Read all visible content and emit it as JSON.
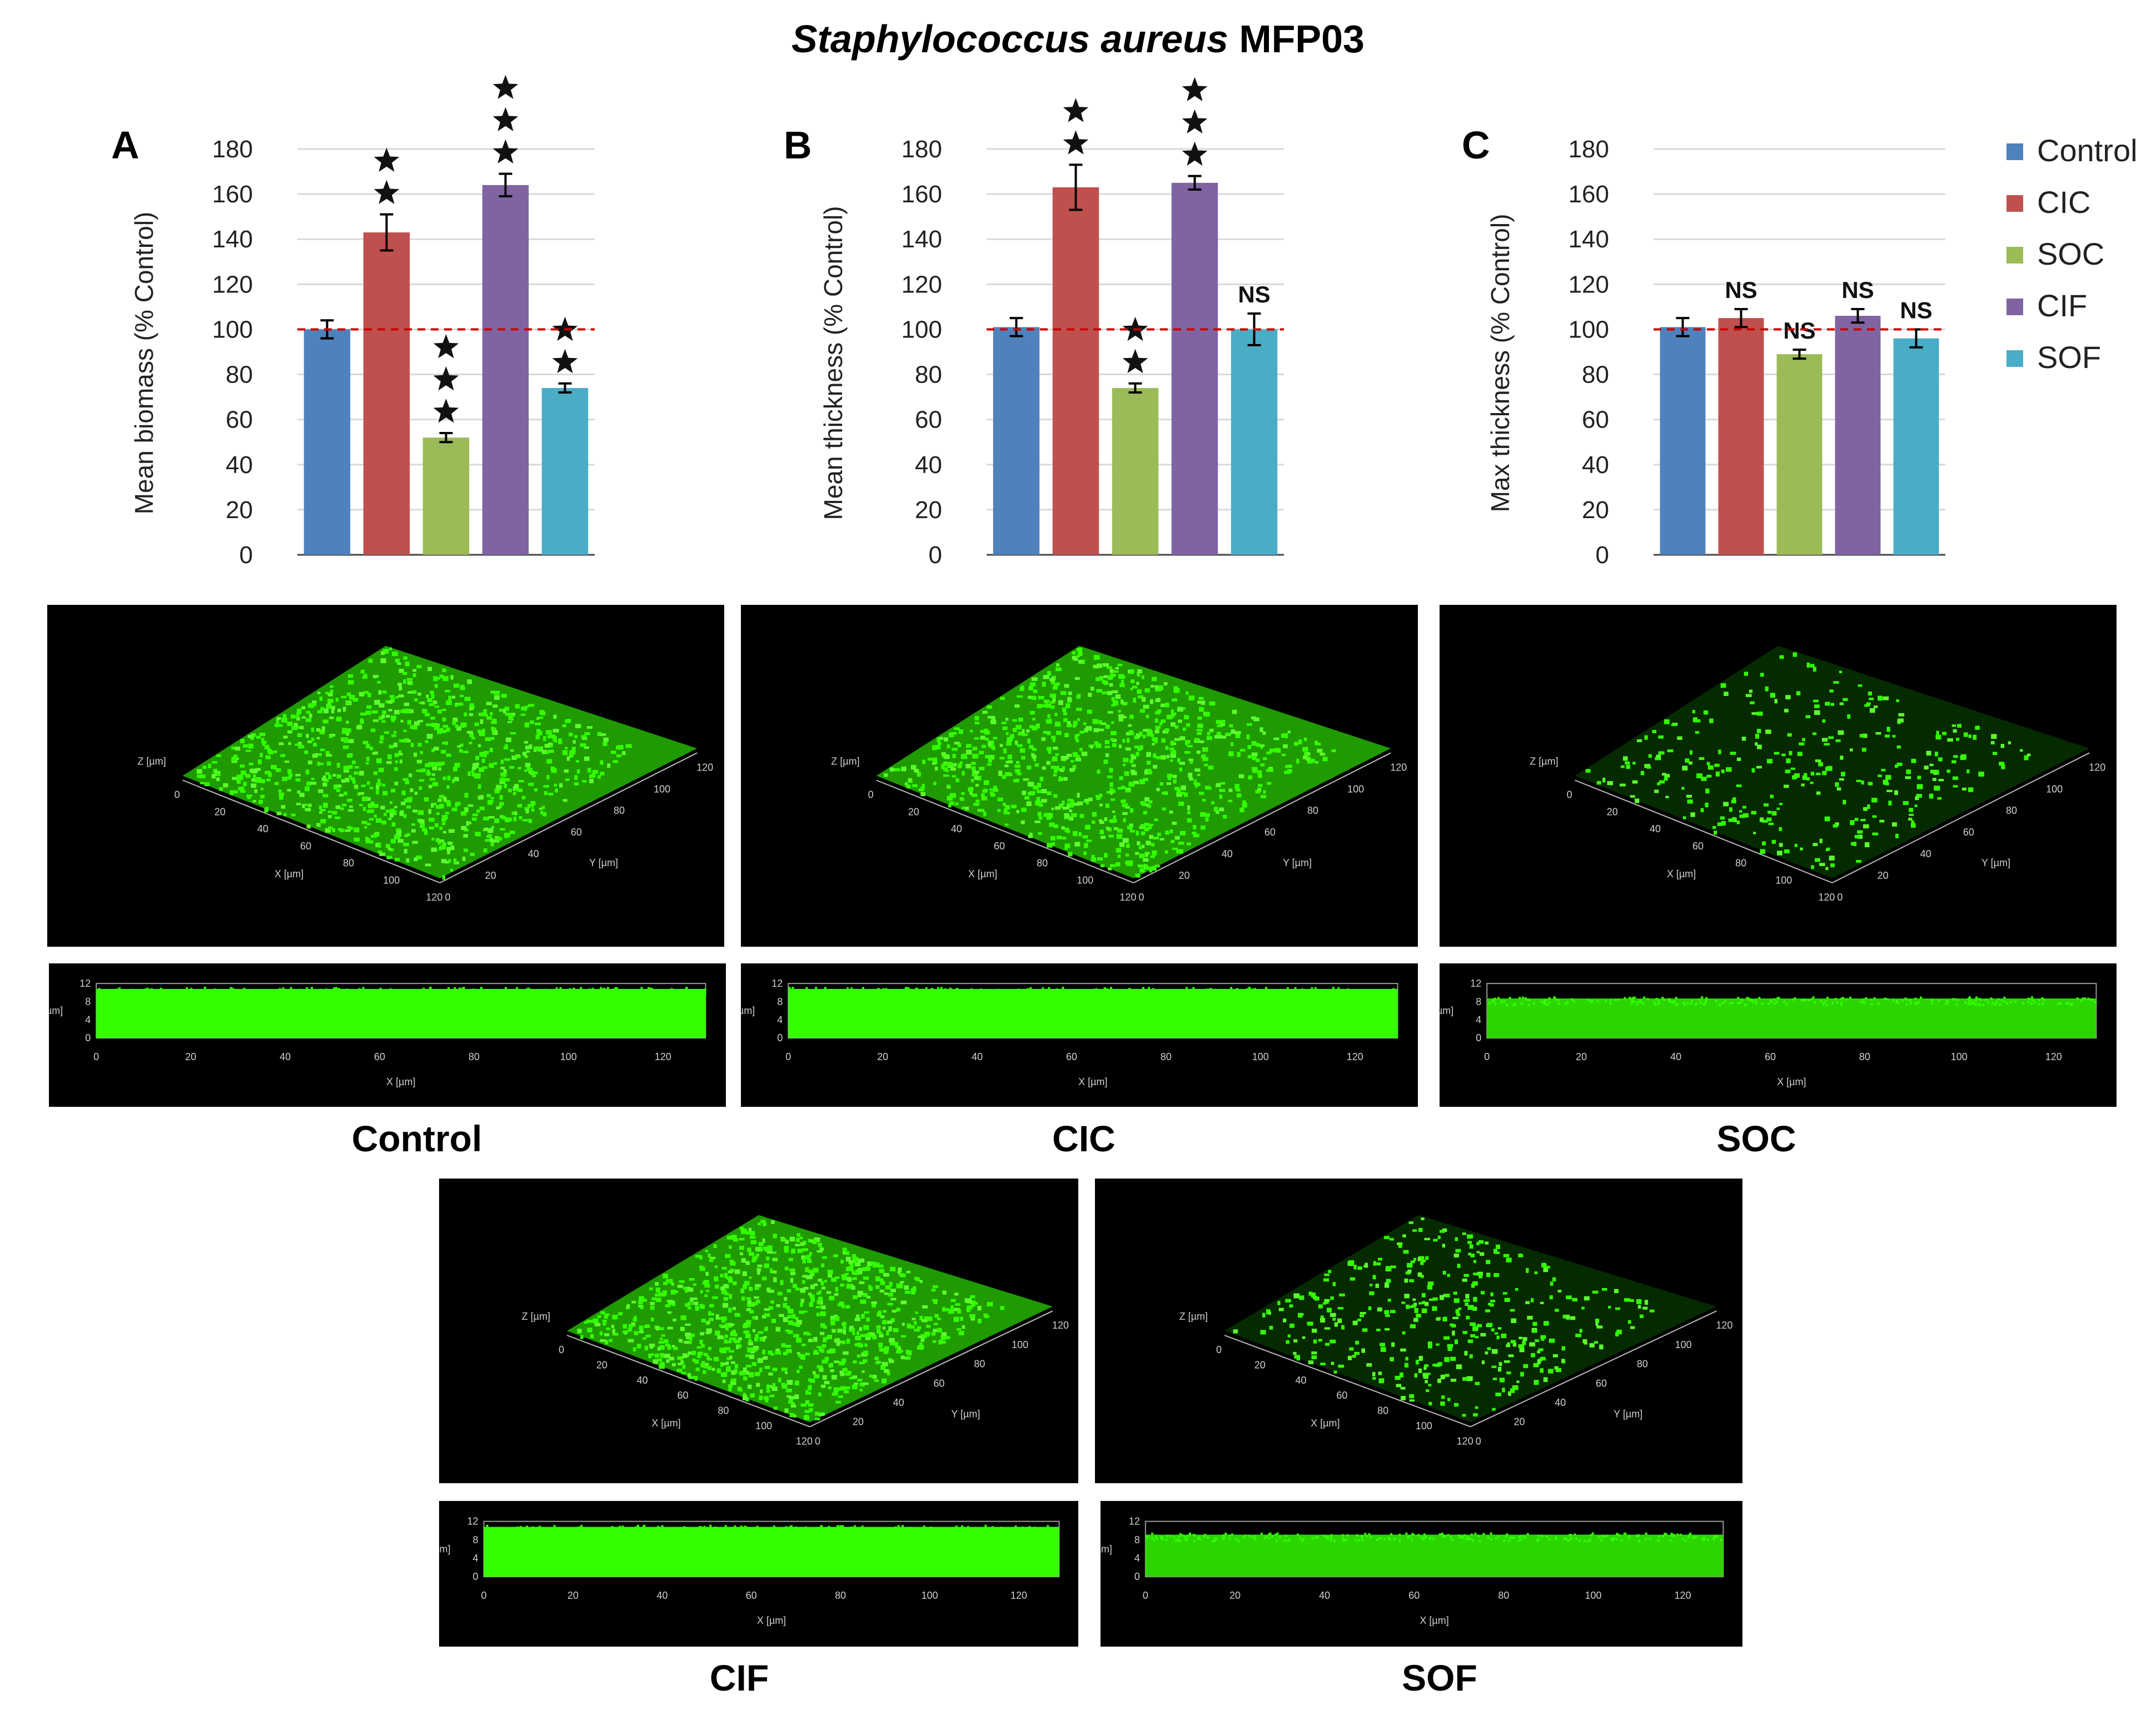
{
  "title": {
    "italic": "Staphylococcus aureus",
    "strain": "MFP03"
  },
  "colors": {
    "Control": "#4f81bd",
    "CIC": "#c0504d",
    "SOC": "#9bbb59",
    "CIF": "#8064a2",
    "SOF": "#4bacc6",
    "reference_line": "#cc0000",
    "biofilm": "#33ff00"
  },
  "legend": [
    "Control",
    "CIC",
    "SOC",
    "CIF",
    "SOF"
  ],
  "chart_data": [
    {
      "panel": "A",
      "type": "bar",
      "categories": [
        "Control",
        "CIC",
        "SOC",
        "CIF",
        "SOF"
      ],
      "values": [
        100,
        143,
        52,
        164,
        74
      ],
      "errors": [
        4,
        8,
        2,
        5,
        2
      ],
      "significance": [
        "",
        "**",
        "***",
        "***",
        "**"
      ],
      "ylabel": "Mean biomass (% Control)",
      "ylim": [
        0,
        180
      ],
      "yticks": [
        0,
        20,
        40,
        60,
        80,
        100,
        120,
        140,
        160,
        180
      ],
      "reference_line": 100
    },
    {
      "panel": "B",
      "type": "bar",
      "categories": [
        "Control",
        "CIC",
        "SOC",
        "CIF",
        "SOF"
      ],
      "values": [
        101,
        163,
        74,
        165,
        100
      ],
      "errors": [
        4,
        10,
        2,
        3,
        7
      ],
      "significance": [
        "",
        "**",
        "**",
        "***",
        "NS"
      ],
      "ylabel": "Mean thickness (% Control)",
      "ylim": [
        0,
        180
      ],
      "yticks": [
        0,
        20,
        40,
        60,
        80,
        100,
        120,
        140,
        160,
        180
      ],
      "reference_line": 100
    },
    {
      "panel": "C",
      "type": "bar",
      "categories": [
        "Control",
        "CIC",
        "SOC",
        "CIF",
        "SOF"
      ],
      "values": [
        101,
        105,
        89,
        106,
        96
      ],
      "errors": [
        4,
        4,
        2,
        3,
        4
      ],
      "significance": [
        "",
        "NS",
        "NS",
        "NS",
        "NS"
      ],
      "ylabel": "Max thickness (% Control)",
      "ylim": [
        0,
        180
      ],
      "yticks": [
        0,
        20,
        40,
        60,
        80,
        100,
        120,
        140,
        160,
        180
      ],
      "reference_line": 100
    }
  ],
  "images": [
    {
      "label": "Control"
    },
    {
      "label": "CIC"
    },
    {
      "label": "SOC"
    },
    {
      "label": "CIF"
    },
    {
      "label": "SOF"
    }
  ],
  "image_axes": {
    "z_label": "Z [µm]",
    "x_label": "X [µm]",
    "y_label": "Y [µm]",
    "xy_ticks": [
      "0",
      "20",
      "40",
      "60",
      "80",
      "100",
      "120"
    ],
    "z_ticks": [
      "0",
      "4",
      "8",
      "12"
    ]
  }
}
